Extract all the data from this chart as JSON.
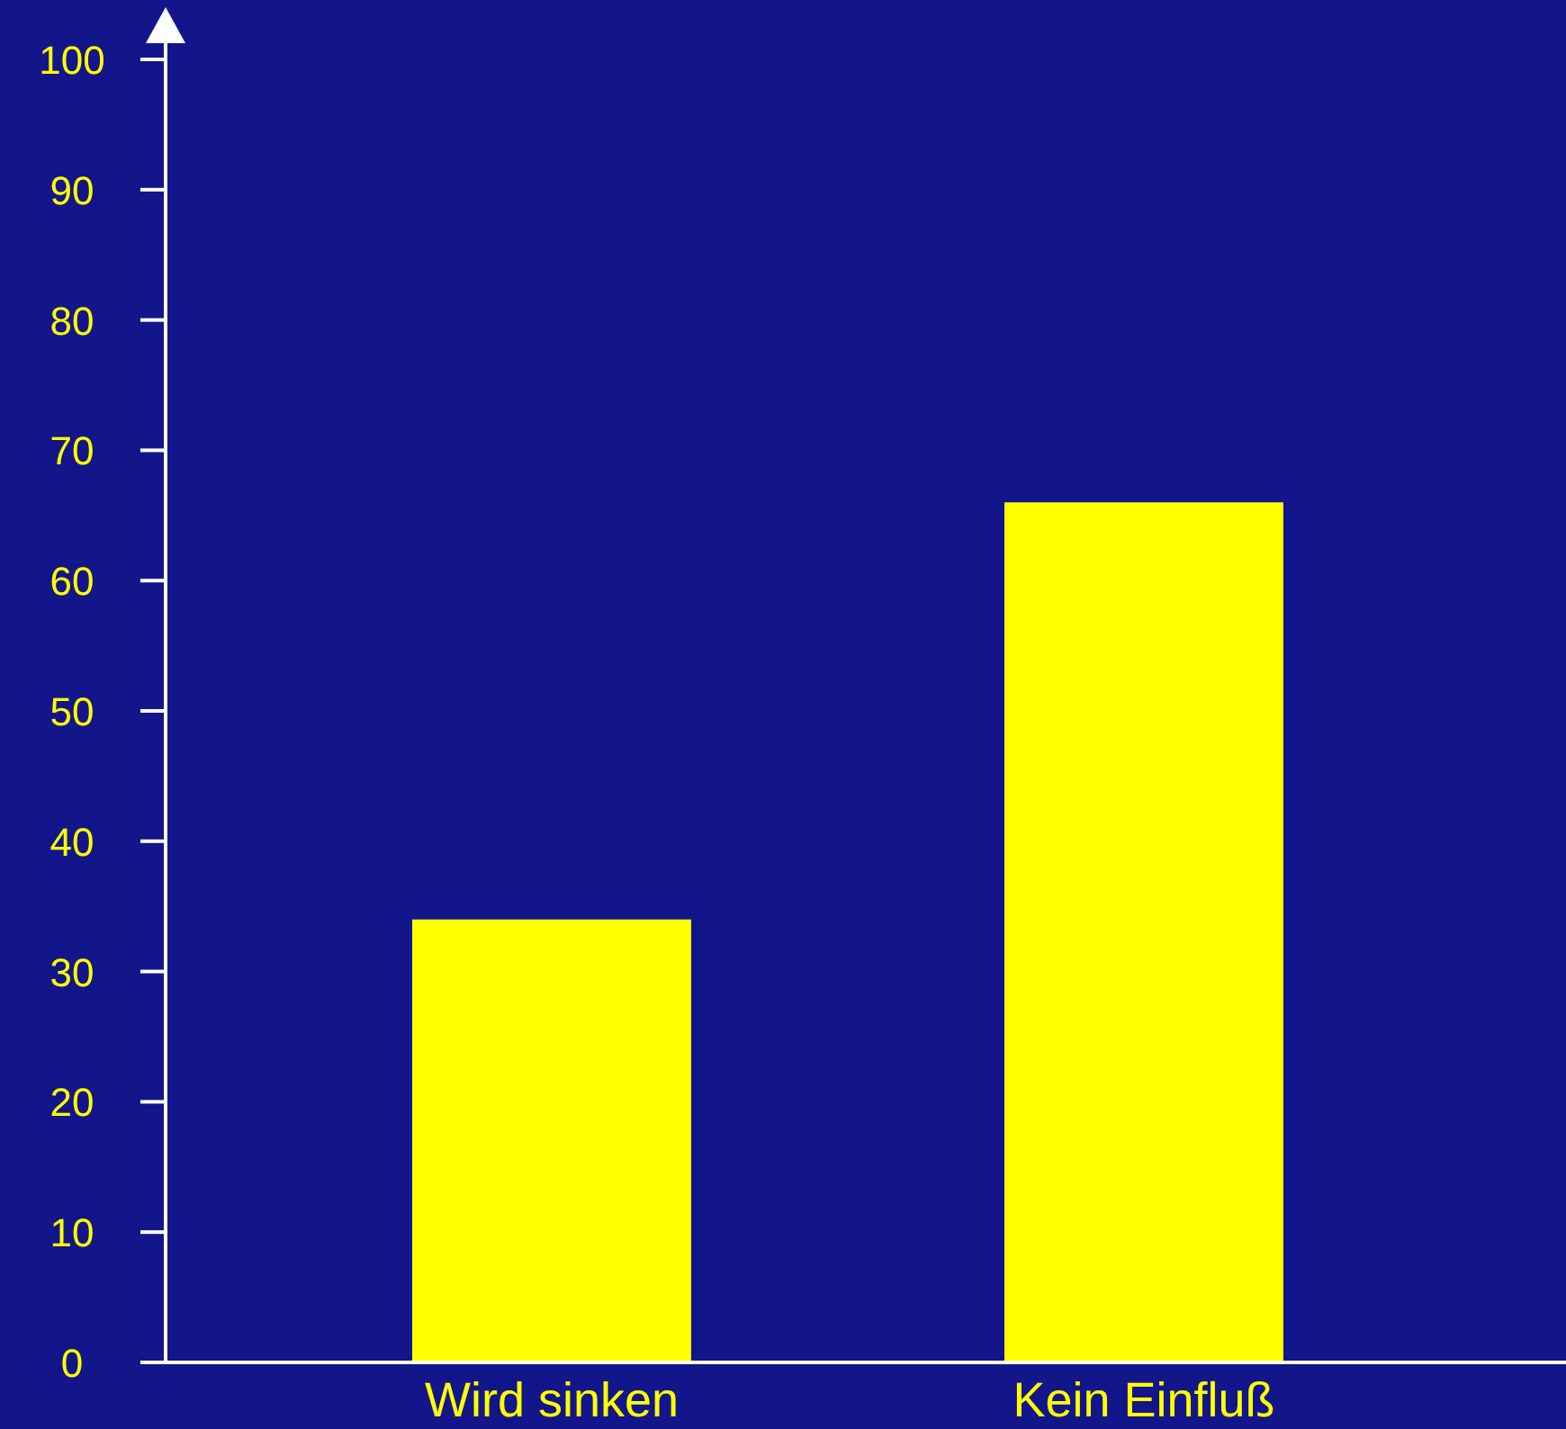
{
  "chart_data": {
    "type": "bar",
    "categories": [
      "Wird sinken",
      "Kein Einfluß"
    ],
    "values": [
      34,
      66
    ],
    "color": "#ffff00",
    "ylim": [
      0,
      100
    ],
    "yticks": [
      0,
      10,
      20,
      30,
      40,
      50,
      60,
      70,
      80,
      90,
      100
    ],
    "grid": false,
    "legend": false
  }
}
